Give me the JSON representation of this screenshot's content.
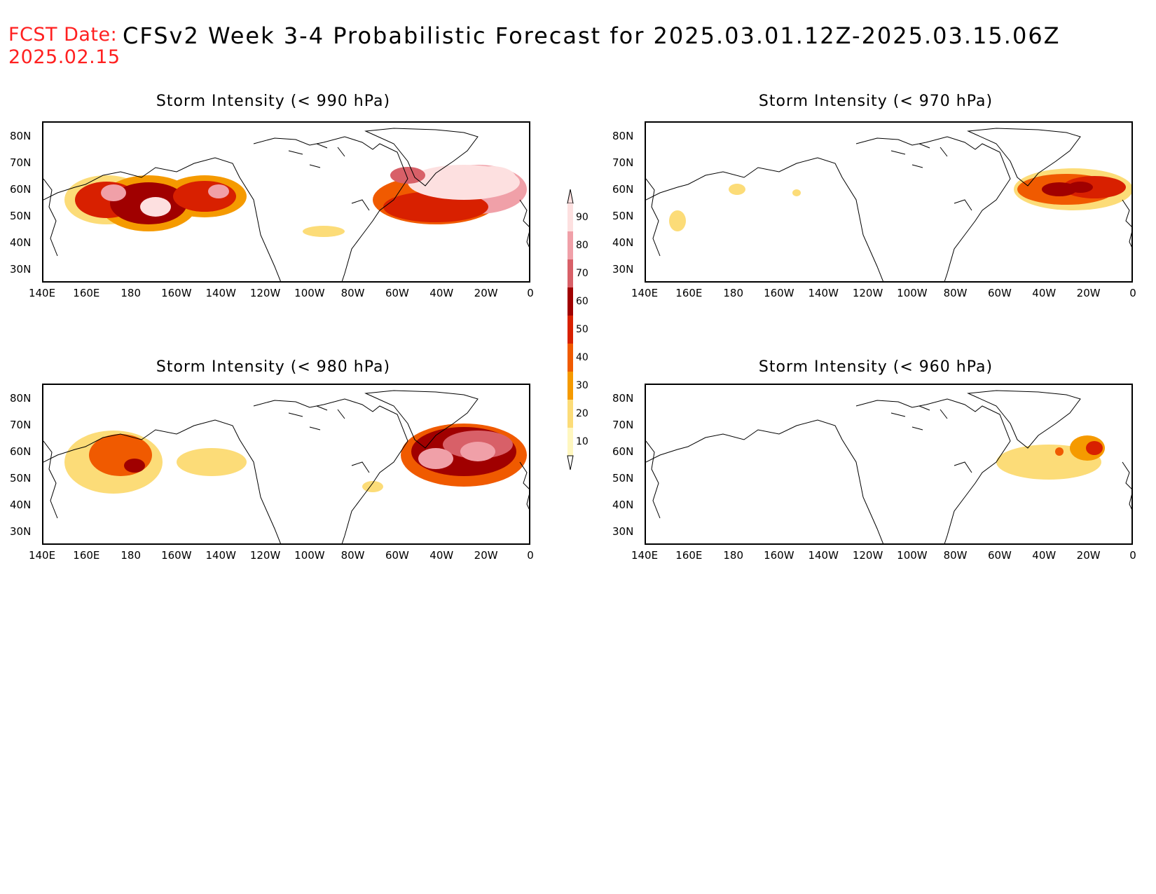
{
  "header": {
    "fcst_label": "FCST Date:",
    "fcst_date": "2025.02.15",
    "title": "CFSv2 Week 3-4 Probabilistic Forecast for 2025.03.01.12Z-2025.03.15.06Z"
  },
  "axes": {
    "x_ticks": [
      "140E",
      "160E",
      "180",
      "160W",
      "140W",
      "120W",
      "100W",
      "80W",
      "60W",
      "40W",
      "20W",
      "0"
    ],
    "y_ticks": [
      "80N",
      "70N",
      "60N",
      "50N",
      "40N",
      "30N"
    ]
  },
  "panels": [
    {
      "title": "Storm Intensity (< 990 hPa)",
      "level": "high"
    },
    {
      "title": "Storm Intensity (< 970 hPa)",
      "level": "mid"
    },
    {
      "title": "Storm Intensity (< 980 hPa)",
      "level": "midhigh"
    },
    {
      "title": "Storm Intensity (< 960 hPa)",
      "level": "low"
    }
  ],
  "colorbar": {
    "labels": [
      "90",
      "80",
      "70",
      "60",
      "50",
      "40",
      "30",
      "20",
      "10"
    ],
    "colors": [
      "#fde0e0",
      "#f0a0a8",
      "#d86068",
      "#a00000",
      "#d82000",
      "#f05a00",
      "#f59a00",
      "#fcdc78",
      "#fff7bf"
    ]
  }
}
